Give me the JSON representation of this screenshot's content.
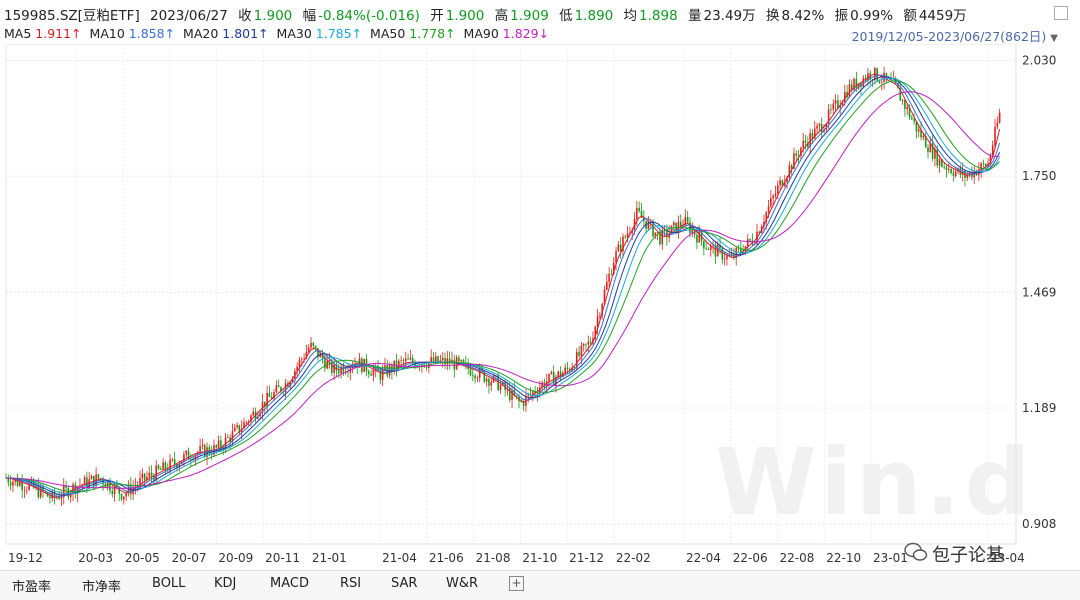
{
  "header": {
    "code": "159985.SZ[豆粕ETF]",
    "date": "2023/06/27",
    "close_label": "收",
    "close": "1.900",
    "change_label": "幅",
    "change": "-0.84%(-0.016)",
    "open_label": "开",
    "open": "1.900",
    "high_label": "高",
    "high": "1.909",
    "low_label": "低",
    "low": "1.890",
    "avg_label": "均",
    "avg": "1.898",
    "volume_label": "量",
    "volume": "23.49万",
    "turnover_label": "换",
    "turnover": "8.42%",
    "amplitude_label": "振",
    "amplitude": "0.99%",
    "amount_label": "额",
    "amount": "4459万"
  },
  "ma": [
    {
      "label": "MA5",
      "value": "1.911↑",
      "color": "#d42020"
    },
    {
      "label": "MA10",
      "value": "1.858↑",
      "color": "#3a6fd8"
    },
    {
      "label": "MA20",
      "value": "1.801↑",
      "color": "#1e3a9a"
    },
    {
      "label": "MA30",
      "value": "1.785↑",
      "color": "#1aa8d8"
    },
    {
      "label": "MA50",
      "value": "1.778↑",
      "color": "#22a022"
    },
    {
      "label": "MA90",
      "value": "1.829↓",
      "color": "#c020c0"
    }
  ],
  "range_text": "2019/12/05-2023/06/27(862日)",
  "tabs": [
    "市盈率",
    "市净率",
    "BOLL",
    "KDJ",
    "MACD",
    "RSI",
    "SAR",
    "W&R"
  ],
  "watermark": "包子论基",
  "chart_data": {
    "type": "line",
    "title": "",
    "xlabel": "",
    "ylabel": "",
    "ylim": [
      0.86,
      2.07
    ],
    "yticks": [
      0.908,
      1.189,
      1.469,
      1.75,
      2.03
    ],
    "ytick_labels": [
      "0.908",
      "1.189",
      "1.469",
      "1.750",
      "2.030"
    ],
    "xtick_labels": [
      "19-12",
      "20-03",
      "20-05",
      "20-07",
      "20-09",
      "20-11",
      "21-01",
      "21-04",
      "21-06",
      "21-08",
      "21-10",
      "21-12",
      "22-02",
      "22-04",
      "22-06",
      "22-08",
      "22-10",
      "23-01",
      "23-04"
    ],
    "x": [
      0,
      3,
      5,
      7,
      9,
      11,
      13,
      16,
      18,
      20,
      22,
      24,
      26,
      29,
      31,
      33,
      35,
      37,
      42
    ],
    "price_path": {
      "x": [
        0,
        1,
        2,
        3,
        4,
        5,
        6,
        7,
        8,
        9,
        10,
        11,
        12,
        13,
        14,
        15,
        16,
        17,
        18,
        19,
        20,
        21,
        22,
        23,
        24,
        25,
        26,
        27,
        28,
        29,
        30,
        31,
        32,
        33,
        34,
        35,
        36,
        37,
        38,
        39,
        40,
        41,
        42,
        42.5
      ],
      "y": [
        1.02,
        1.0,
        0.97,
        1.0,
        1.02,
        0.98,
        1.02,
        1.05,
        1.08,
        1.09,
        1.14,
        1.2,
        1.25,
        1.34,
        1.28,
        1.3,
        1.27,
        1.3,
        1.3,
        1.3,
        1.28,
        1.25,
        1.2,
        1.25,
        1.28,
        1.35,
        1.55,
        1.66,
        1.6,
        1.64,
        1.58,
        1.55,
        1.6,
        1.72,
        1.82,
        1.88,
        1.96,
        2.0,
        1.97,
        1.86,
        1.78,
        1.75,
        1.78,
        1.9
      ]
    },
    "series": [
      {
        "label": "MA5",
        "lag": 0.3,
        "color": "#d42020"
      },
      {
        "label": "MA10",
        "lag": 0.6,
        "color": "#3a6fd8"
      },
      {
        "label": "MA20",
        "lag": 1.0,
        "color": "#1e3a9a"
      },
      {
        "label": "MA30",
        "lag": 1.4,
        "color": "#1aa8d8"
      },
      {
        "label": "MA50",
        "lag": 2.0,
        "color": "#22a022"
      },
      {
        "label": "MA90",
        "lag": 3.5,
        "color": "#c020c0"
      }
    ],
    "grid": true
  }
}
